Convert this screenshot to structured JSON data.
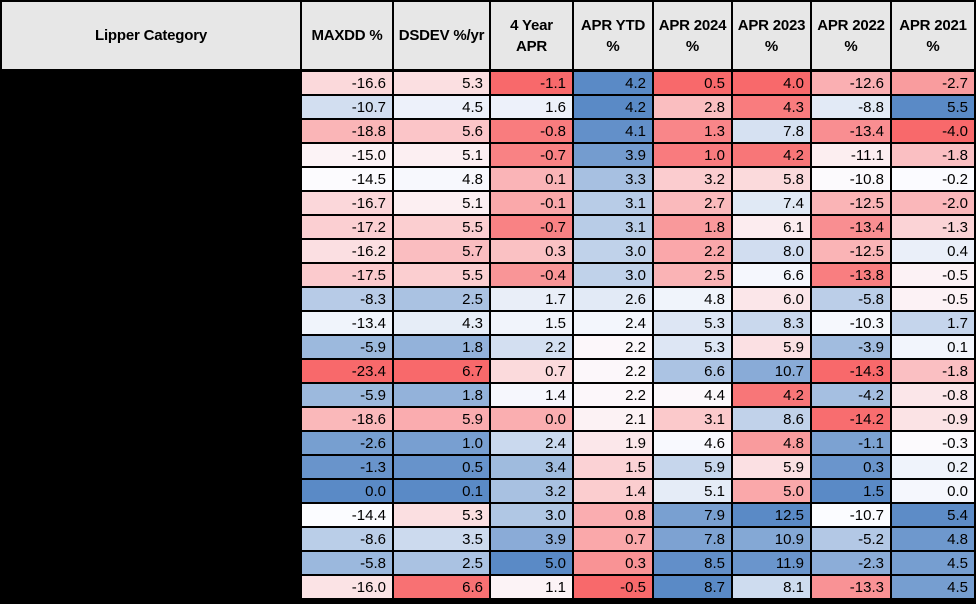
{
  "table": {
    "category_header": "Lipper Category",
    "columns": [
      {
        "id": "maxdd",
        "label": "MAXDD %",
        "reversed": false
      },
      {
        "id": "dsdev",
        "label": "DSDEV %/yr",
        "reversed": true
      },
      {
        "id": "apr-4yr",
        "label": "4 Year\nAPR",
        "reversed": false
      },
      {
        "id": "apr-ytd",
        "label": "APR YTD\n%",
        "reversed": false
      },
      {
        "id": "apr-2024",
        "label": "APR 2024\n%",
        "reversed": false
      },
      {
        "id": "apr-2023",
        "label": "APR 2023\n%",
        "reversed": false
      },
      {
        "id": "apr-2022",
        "label": "APR 2022\n%",
        "reversed": false
      },
      {
        "id": "apr-2021",
        "label": "APR 2021\n%",
        "reversed": false
      }
    ],
    "rows": [
      [
        -16.6,
        5.3,
        -1.1,
        4.2,
        0.5,
        4.0,
        -12.6,
        -2.7
      ],
      [
        -10.7,
        4.5,
        1.6,
        4.2,
        2.8,
        4.3,
        -8.8,
        5.5
      ],
      [
        -18.8,
        5.6,
        -0.8,
        4.1,
        1.3,
        7.8,
        -13.4,
        -4.0
      ],
      [
        -15.0,
        5.1,
        -0.7,
        3.9,
        1.0,
        4.2,
        -11.1,
        -1.8
      ],
      [
        -14.5,
        4.8,
        0.1,
        3.3,
        3.2,
        5.8,
        -10.8,
        -0.2
      ],
      [
        -16.7,
        5.1,
        -0.1,
        3.1,
        2.7,
        7.4,
        -12.5,
        -2.0
      ],
      [
        -17.2,
        5.5,
        -0.7,
        3.1,
        1.8,
        6.1,
        -13.4,
        -1.3
      ],
      [
        -16.2,
        5.7,
        0.3,
        3.0,
        2.2,
        8.0,
        -12.5,
        0.4
      ],
      [
        -17.5,
        5.5,
        -0.4,
        3.0,
        2.5,
        6.6,
        -13.8,
        -0.5
      ],
      [
        -8.3,
        2.5,
        1.7,
        2.6,
        4.8,
        6.0,
        -5.8,
        -0.5
      ],
      [
        -13.4,
        4.3,
        1.5,
        2.4,
        5.3,
        8.3,
        -10.3,
        1.7
      ],
      [
        -5.9,
        1.8,
        2.2,
        2.2,
        5.3,
        5.9,
        -3.9,
        0.1
      ],
      [
        -23.4,
        6.7,
        0.7,
        2.2,
        6.6,
        10.7,
        -14.3,
        -1.8
      ],
      [
        -5.9,
        1.8,
        1.4,
        2.2,
        4.4,
        4.2,
        -4.2,
        -0.8
      ],
      [
        -18.6,
        5.9,
        0.0,
        2.1,
        3.1,
        8.6,
        -14.2,
        -0.9
      ],
      [
        -2.6,
        1.0,
        2.4,
        1.9,
        4.6,
        4.8,
        -1.1,
        -0.3
      ],
      [
        -1.3,
        0.5,
        3.4,
        1.5,
        5.9,
        5.9,
        0.3,
        0.2
      ],
      [
        0.0,
        0.1,
        3.2,
        1.4,
        5.1,
        5.0,
        1.5,
        0.0
      ],
      [
        -14.4,
        5.3,
        3.0,
        0.8,
        7.9,
        12.5,
        -10.7,
        5.4
      ],
      [
        -8.6,
        3.5,
        3.9,
        0.7,
        7.8,
        10.9,
        -5.2,
        4.8
      ],
      [
        -5.8,
        2.5,
        5.0,
        0.3,
        8.5,
        11.9,
        -2.3,
        4.5
      ],
      [
        -16.0,
        6.6,
        1.1,
        -0.5,
        8.7,
        8.1,
        -13.3,
        4.5
      ]
    ],
    "heatmap": {
      "low_color": "#F8696B",
      "mid_color": "#FCFCFF",
      "high_color": "#5A8AC6",
      "midpoint": "50th percentile per column"
    },
    "styles": {
      "header_bg": "#E7E7E7",
      "grid_line_color": "#000000",
      "redaction_color": "#000000",
      "text_color": "#000000"
    }
  }
}
